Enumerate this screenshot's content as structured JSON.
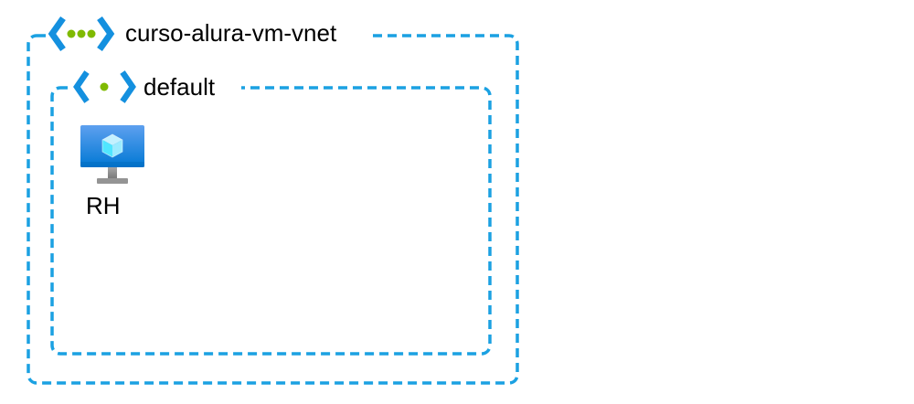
{
  "diagram": {
    "vnet": {
      "name": "curso-alura-vm-vnet",
      "icon": "virtual-network-icon",
      "border_color": "#1BA1E2",
      "icon_chevron_color": "#1490DF",
      "icon_dot_color": "#7FBA00"
    },
    "subnet": {
      "name": "default",
      "icon": "subnet-icon",
      "border_color": "#1BA1E2"
    },
    "vm": {
      "name": "RH",
      "icon": "virtual-machine-icon"
    }
  }
}
